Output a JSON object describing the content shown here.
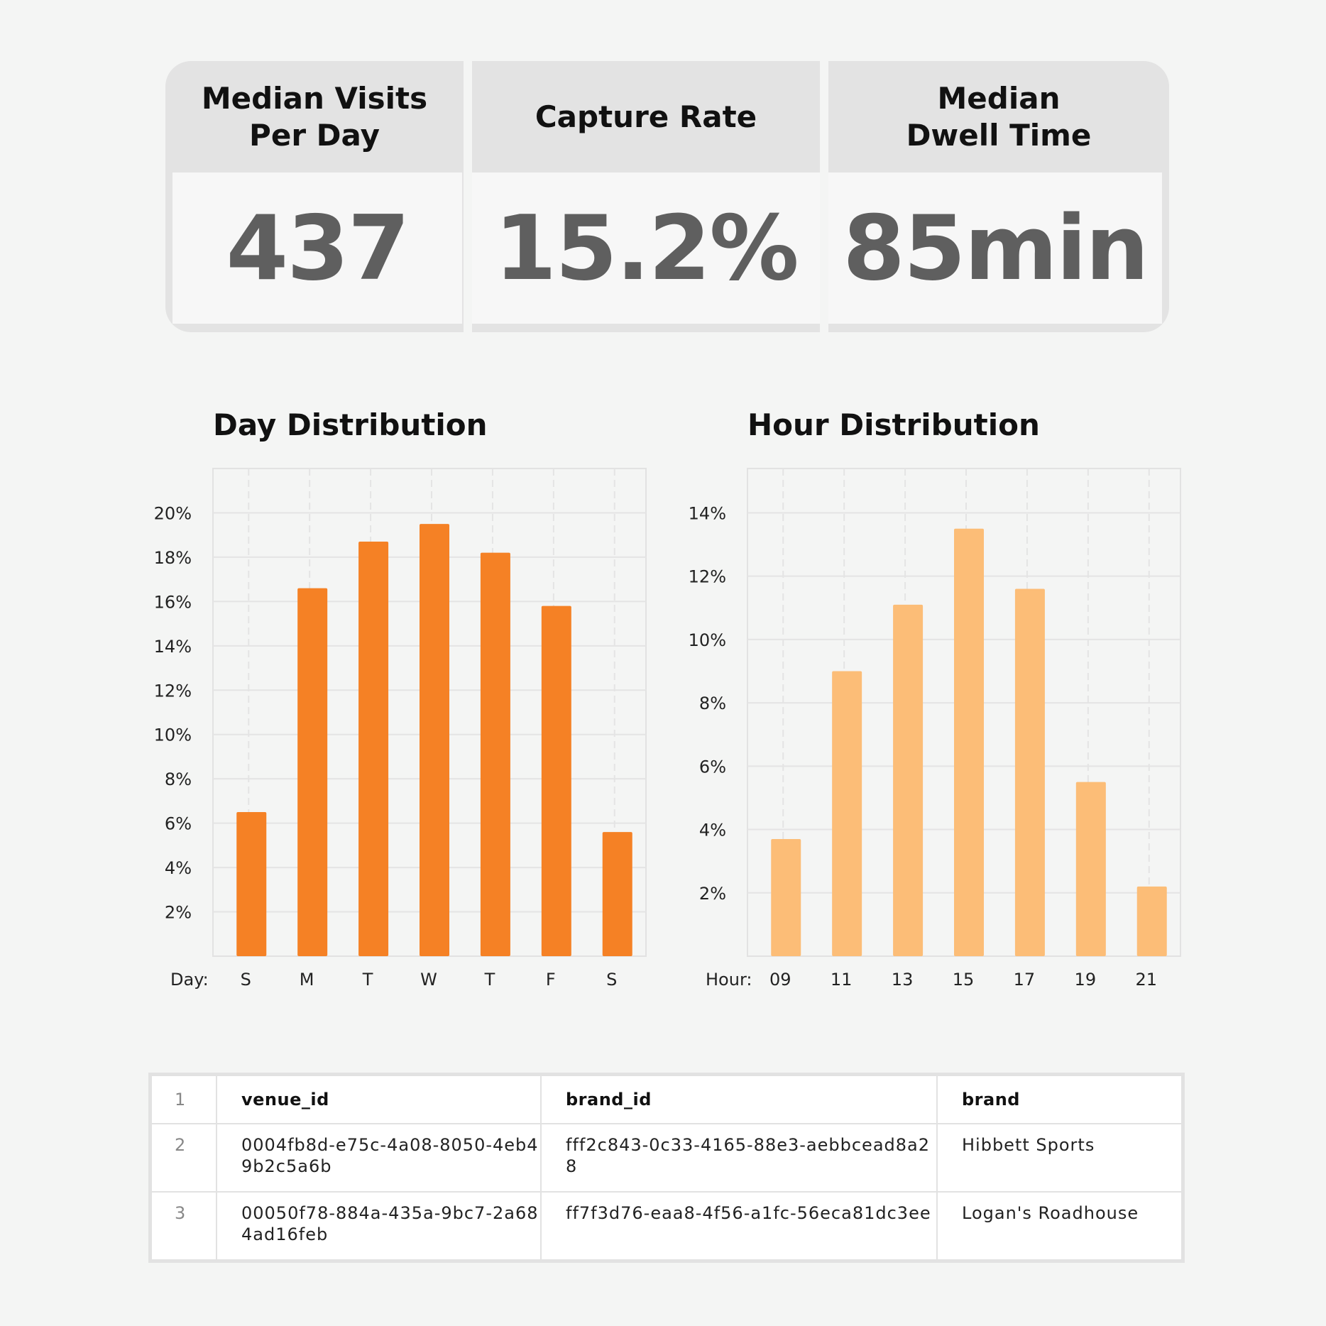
{
  "kpis": [
    {
      "label_lines": [
        "Median Visits",
        "Per Day"
      ],
      "value": "437"
    },
    {
      "label_lines": [
        "Capture Rate"
      ],
      "value": "15.2%"
    },
    {
      "label_lines": [
        "Median",
        "Dwell Time"
      ],
      "value": "85min"
    }
  ],
  "chart_data": [
    {
      "type": "bar",
      "title": "Day Distribution",
      "x_axis_prefix": "Day:",
      "categories": [
        "S",
        "M",
        "T",
        "W",
        "T",
        "F",
        "S"
      ],
      "values": [
        6.5,
        16.6,
        18.7,
        19.5,
        18.2,
        15.8,
        5.6
      ],
      "ylim": [
        0,
        22
      ],
      "yticks": [
        2,
        4,
        6,
        8,
        10,
        12,
        14,
        16,
        18,
        20
      ],
      "ytick_labels": [
        "2%",
        "4%",
        "6%",
        "8%",
        "10%",
        "12%",
        "14%",
        "16%",
        "18%",
        "20%"
      ],
      "grid": true,
      "color": "#f58125"
    },
    {
      "type": "bar",
      "title": "Hour Distribution",
      "x_axis_prefix": "Hour:",
      "categories": [
        "09",
        "11",
        "13",
        "15",
        "17",
        "19",
        "21"
      ],
      "values": [
        3.7,
        9.0,
        11.1,
        13.5,
        11.6,
        5.5,
        2.2
      ],
      "ylim": [
        0,
        15.4
      ],
      "yticks": [
        2,
        4,
        6,
        8,
        10,
        12,
        14
      ],
      "ytick_labels": [
        "2%",
        "4%",
        "6%",
        "8%",
        "10%",
        "12%",
        "14%"
      ],
      "grid": true,
      "color": "#fcbd77"
    }
  ],
  "table": {
    "header": {
      "row": "1",
      "cols": [
        "venue_id",
        "brand_id",
        "brand"
      ]
    },
    "rows": [
      {
        "row": "2",
        "cells": [
          "0004fb8d-e75c-4a08-8050-4eb49b2c5a6b",
          "fff2c843-0c33-4165-88e3-aebbcead8a28",
          "Hibbett Sports"
        ]
      },
      {
        "row": "3",
        "cells": [
          "00050f78-884a-435a-9bc7-2a684ad16feb",
          "ff7f3d76-eaa8-4f56-a1fc-56eca81dc3ee",
          "Logan's Roadhouse"
        ]
      }
    ]
  }
}
